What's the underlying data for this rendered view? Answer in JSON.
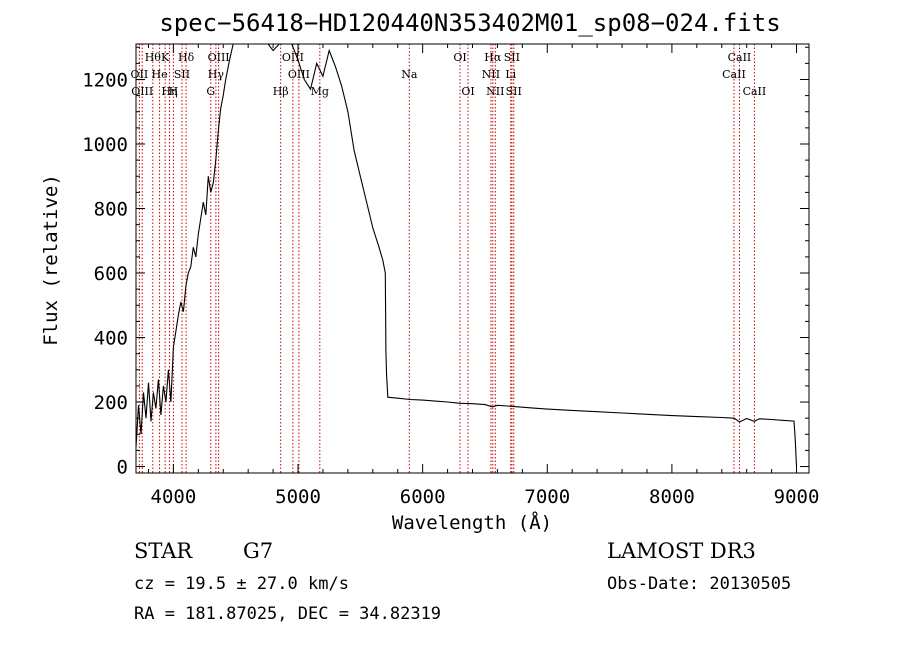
{
  "chart_data": {
    "type": "line",
    "title": "spec−56418−HD120440N353402M01_sp08−024.fits",
    "xlabel": "Wavelength (Å)",
    "ylabel": "Flux (relative)",
    "xlim": [
      3700,
      9100
    ],
    "ylim": [
      -20,
      1310
    ],
    "xticks": [
      4000,
      5000,
      6000,
      7000,
      8000,
      9000
    ],
    "yticks": [
      0,
      200,
      400,
      600,
      800,
      1000,
      1200
    ],
    "grid": false,
    "series": [
      {
        "points": [
          [
            3700,
            60
          ],
          [
            3720,
            190
          ],
          [
            3740,
            100
          ],
          [
            3760,
            230
          ],
          [
            3780,
            150
          ],
          [
            3800,
            260
          ],
          [
            3820,
            140
          ],
          [
            3840,
            230
          ],
          [
            3860,
            180
          ],
          [
            3880,
            270
          ],
          [
            3900,
            160
          ],
          [
            3920,
            250
          ],
          [
            3940,
            200
          ],
          [
            3960,
            300
          ],
          [
            3980,
            200
          ],
          [
            4000,
            370
          ],
          [
            4020,
            420
          ],
          [
            4040,
            470
          ],
          [
            4060,
            510
          ],
          [
            4080,
            480
          ],
          [
            4100,
            560
          ],
          [
            4120,
            600
          ],
          [
            4140,
            620
          ],
          [
            4160,
            680
          ],
          [
            4180,
            650
          ],
          [
            4200,
            720
          ],
          [
            4220,
            770
          ],
          [
            4240,
            820
          ],
          [
            4260,
            780
          ],
          [
            4280,
            900
          ],
          [
            4300,
            850
          ],
          [
            4320,
            880
          ],
          [
            4340,
            950
          ],
          [
            4360,
            1040
          ],
          [
            4380,
            1110
          ],
          [
            4400,
            1150
          ],
          [
            4420,
            1200
          ],
          [
            4450,
            1260
          ],
          [
            4480,
            1310
          ],
          [
            4600,
            1310
          ],
          [
            4760,
            1310
          ],
          [
            4800,
            1290
          ],
          [
            4850,
            1310
          ],
          [
            4950,
            1310
          ],
          [
            5000,
            1260
          ],
          [
            5050,
            1200
          ],
          [
            5100,
            1170
          ],
          [
            5150,
            1250
          ],
          [
            5200,
            1210
          ],
          [
            5250,
            1290
          ],
          [
            5300,
            1240
          ],
          [
            5350,
            1180
          ],
          [
            5400,
            1100
          ],
          [
            5450,
            980
          ],
          [
            5500,
            900
          ],
          [
            5550,
            820
          ],
          [
            5600,
            740
          ],
          [
            5650,
            680
          ],
          [
            5680,
            640
          ],
          [
            5700,
            600
          ],
          [
            5705,
            360
          ],
          [
            5710,
            290
          ],
          [
            5720,
            215
          ],
          [
            5800,
            212
          ],
          [
            5900,
            208
          ],
          [
            6000,
            206
          ],
          [
            6100,
            203
          ],
          [
            6200,
            200
          ],
          [
            6300,
            196
          ],
          [
            6400,
            195
          ],
          [
            6500,
            192
          ],
          [
            6560,
            185
          ],
          [
            6600,
            190
          ],
          [
            6700,
            187
          ],
          [
            6800,
            184
          ],
          [
            6900,
            181
          ],
          [
            7000,
            178
          ],
          [
            7200,
            174
          ],
          [
            7400,
            170
          ],
          [
            7600,
            166
          ],
          [
            7800,
            162
          ],
          [
            8000,
            158
          ],
          [
            8200,
            155
          ],
          [
            8400,
            152
          ],
          [
            8500,
            150
          ],
          [
            8542,
            138
          ],
          [
            8600,
            149
          ],
          [
            8662,
            140
          ],
          [
            8700,
            148
          ],
          [
            8800,
            146
          ],
          [
            8900,
            143
          ],
          [
            8980,
            141
          ],
          [
            8990,
            80
          ],
          [
            9000,
            0
          ]
        ]
      }
    ],
    "lines": [
      {
        "x": 3727,
        "label": "OII",
        "row": 1
      },
      {
        "x": 3750,
        "label": "OIII",
        "row": 2
      },
      {
        "x": 3835,
        "label": "Hθ",
        "row": 0
      },
      {
        "x": 3889,
        "label": "He",
        "row": 1
      },
      {
        "x": 3934,
        "label": "K",
        "row": 0
      },
      {
        "x": 3969,
        "label": "Hη",
        "row": 2
      },
      {
        "x": 4000,
        "label": "H",
        "row": 2
      },
      {
        "x": 4069,
        "label": "SII",
        "row": 1
      },
      {
        "x": 4102,
        "label": "Hδ",
        "row": 0
      },
      {
        "x": 4300,
        "label": "G",
        "row": 2
      },
      {
        "x": 4341,
        "label": "Hγ",
        "row": 1
      },
      {
        "x": 4363,
        "label": "OIII",
        "row": 0
      },
      {
        "x": 4861,
        "label": "Hβ",
        "row": 2
      },
      {
        "x": 4959,
        "label": "OIII",
        "row": 0
      },
      {
        "x": 5007,
        "label": "OIII",
        "row": 1
      },
      {
        "x": 5175,
        "label": "Mg",
        "row": 2
      },
      {
        "x": 5893,
        "label": "Na",
        "row": 1
      },
      {
        "x": 6300,
        "label": "OI",
        "row": 0
      },
      {
        "x": 6364,
        "label": "OI",
        "row": 2
      },
      {
        "x": 6548,
        "label": "NII",
        "row": 1
      },
      {
        "x": 6563,
        "label": "Hα",
        "row": 0
      },
      {
        "x": 6583,
        "label": "NII",
        "row": 2
      },
      {
        "x": 6707,
        "label": "Li",
        "row": 1
      },
      {
        "x": 6716,
        "label": "SII",
        "row": 0
      },
      {
        "x": 6731,
        "label": "SII",
        "row": 2
      },
      {
        "x": 8498,
        "label": "CaII",
        "row": 1
      },
      {
        "x": 8542,
        "label": "CaII",
        "row": 0
      },
      {
        "x": 8662,
        "label": "CaII",
        "row": 2
      }
    ]
  },
  "info": {
    "class": "STAR",
    "subclass": "G7",
    "survey": "LAMOST DR3",
    "redshift": "cz = 19.5 ± 27.0 km/s",
    "obsdate": "Obs-Date: 20130505",
    "coords": "RA = 181.87025, DEC =  34.82319"
  }
}
